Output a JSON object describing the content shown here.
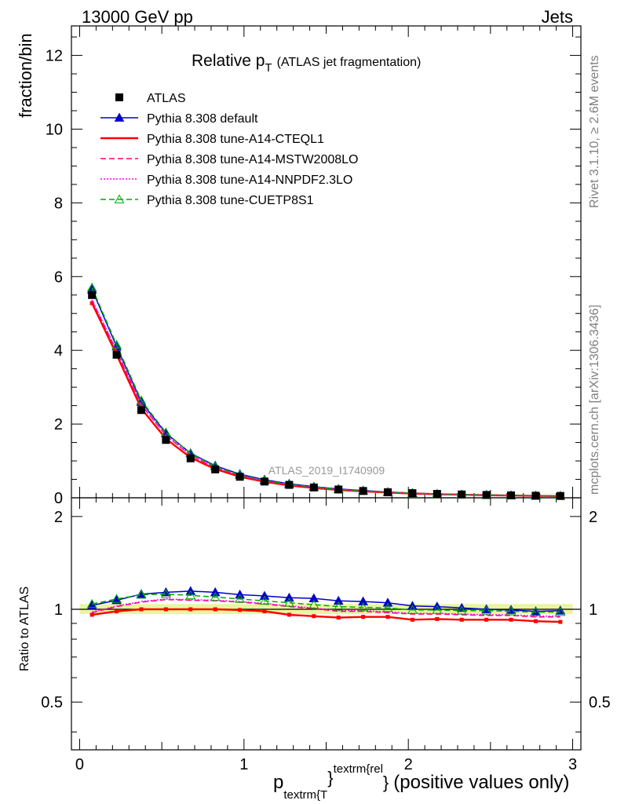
{
  "header": {
    "energy_label": "13000 GeV pp",
    "process_label": "Jets"
  },
  "side_labels": {
    "rivet": "Rivet 3.1.10, ≥ 2.6M events",
    "mcplots": "mcplots.cern.ch [arXiv:1306.3436]"
  },
  "chart_data": {
    "type": "line",
    "title_main": "Relative p",
    "title_sub": "T",
    "title_paren": "(ATLAS jet fragmentation)",
    "watermark": "ATLAS_2019_I1740909",
    "ylabel": "fraction/bin",
    "ratio_ylabel": "Ratio to ATLAS",
    "xlabel_p": "p",
    "xlabel_sub": "textrm{T",
    "xlabel_brace1": "}",
    "xlabel_sup": "textrm{rel",
    "xlabel_brace2": "}",
    "xlabel_tail": "(positive values only)",
    "xlim": [
      -0.05,
      3.05
    ],
    "ylim": [
      0,
      12.8
    ],
    "ratio_ylim": [
      0.35,
      2.3
    ],
    "x_ticks": [
      "0",
      "1",
      "2",
      "3"
    ],
    "y_ticks": [
      "0",
      "2",
      "4",
      "6",
      "8",
      "10",
      "12"
    ],
    "ratio_ticks": [
      "0.5",
      "1",
      "2"
    ],
    "x": [
      0.075,
      0.225,
      0.375,
      0.525,
      0.675,
      0.825,
      0.975,
      1.125,
      1.275,
      1.425,
      1.575,
      1.725,
      1.875,
      2.025,
      2.175,
      2.325,
      2.475,
      2.625,
      2.775,
      2.925
    ],
    "data": {
      "name": "ATLAS",
      "values": [
        5.5,
        3.88,
        2.38,
        1.57,
        1.07,
        0.77,
        0.57,
        0.44,
        0.35,
        0.28,
        0.225,
        0.185,
        0.15,
        0.125,
        0.105,
        0.09,
        0.077,
        0.066,
        0.057,
        0.05
      ]
    },
    "band": {
      "low": 0.965,
      "high": 1.04
    },
    "series": [
      {
        "name": "Pythia 8.308 default",
        "color": "#0000cc",
        "style": "solid",
        "marker": "triangle-filled",
        "values": [
          5.65,
          4.1,
          2.6,
          1.75,
          1.21,
          0.87,
          0.64,
          0.49,
          0.38,
          0.3,
          0.24,
          0.195,
          0.157,
          0.128,
          0.107,
          0.091,
          0.077,
          0.066,
          0.056,
          0.05
        ],
        "ratio": [
          1.03,
          1.07,
          1.12,
          1.135,
          1.145,
          1.135,
          1.115,
          1.105,
          1.09,
          1.085,
          1.065,
          1.06,
          1.05,
          1.025,
          1.02,
          1.01,
          1.0,
          0.995,
          0.985,
          0.99
        ]
      },
      {
        "name": "Pythia 8.308 tune-A14-CTEQL1",
        "color": "#ff0000",
        "style": "solid",
        "marker": "square-small",
        "values": [
          5.28,
          3.88,
          2.42,
          1.6,
          1.09,
          0.78,
          0.57,
          0.435,
          0.335,
          0.267,
          0.213,
          0.175,
          0.142,
          0.116,
          0.098,
          0.083,
          0.071,
          0.061,
          0.052,
          0.046
        ],
        "ratio": [
          0.96,
          0.985,
          1.0,
          1.0,
          1.0,
          1.0,
          0.995,
          0.985,
          0.96,
          0.95,
          0.94,
          0.945,
          0.945,
          0.925,
          0.93,
          0.925,
          0.925,
          0.925,
          0.915,
          0.91
        ]
      },
      {
        "name": "Pythia 8.308 tune-A14-MSTW2008LO",
        "color": "#ff0066",
        "style": "dashed",
        "marker": "none",
        "values": [
          5.35,
          3.98,
          2.52,
          1.69,
          1.15,
          0.82,
          0.6,
          0.46,
          0.355,
          0.28,
          0.222,
          0.182,
          0.146,
          0.121,
          0.101,
          0.086,
          0.073,
          0.063,
          0.054,
          0.048
        ],
        "ratio": [
          0.975,
          1.02,
          1.055,
          1.075,
          1.07,
          1.065,
          1.055,
          1.04,
          1.02,
          1.005,
          0.985,
          0.985,
          0.975,
          0.965,
          0.965,
          0.96,
          0.955,
          0.955,
          0.945,
          0.945
        ]
      },
      {
        "name": "Pythia 8.308 tune-A14-NNPDF2.3LO",
        "color": "#ff00ff",
        "style": "dotted",
        "marker": "none",
        "values": [
          5.37,
          4.0,
          2.53,
          1.7,
          1.16,
          0.83,
          0.605,
          0.462,
          0.357,
          0.282,
          0.224,
          0.183,
          0.147,
          0.122,
          0.102,
          0.087,
          0.074,
          0.063,
          0.054,
          0.048
        ],
        "ratio": [
          0.98,
          1.025,
          1.06,
          1.08,
          1.075,
          1.07,
          1.06,
          1.045,
          1.025,
          1.01,
          0.99,
          0.99,
          0.98,
          0.97,
          0.97,
          0.965,
          0.96,
          0.96,
          0.95,
          0.95
        ]
      },
      {
        "name": "Pythia 8.308 tune-CUETP8S1",
        "color": "#00aa00",
        "style": "dashed",
        "marker": "triangle-open",
        "values": [
          5.7,
          4.15,
          2.64,
          1.77,
          1.2,
          0.85,
          0.62,
          0.47,
          0.365,
          0.29,
          0.23,
          0.188,
          0.152,
          0.124,
          0.104,
          0.088,
          0.075,
          0.064,
          0.055,
          0.049
        ],
        "ratio": [
          1.04,
          1.08,
          1.115,
          1.12,
          1.11,
          1.095,
          1.08,
          1.065,
          1.05,
          1.035,
          1.02,
          1.015,
          1.01,
          0.995,
          0.995,
          0.99,
          0.99,
          0.985,
          0.98,
          0.98
        ]
      }
    ]
  }
}
